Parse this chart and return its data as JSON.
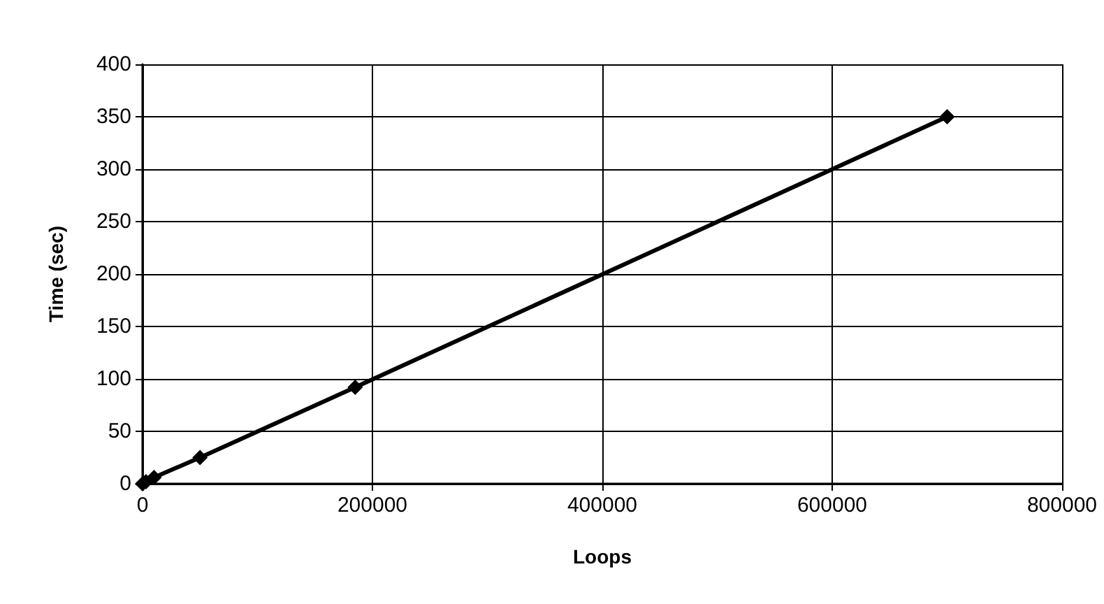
{
  "chart_data": {
    "type": "line",
    "xlabel": "Loops",
    "ylabel": "Time (sec)",
    "x": [
      0,
      3000,
      10000,
      50000,
      185000,
      700000
    ],
    "series": [
      {
        "color": "#000000",
        "values": [
          0,
          2,
          6,
          25,
          92,
          350
        ]
      }
    ],
    "xlim": [
      0,
      800000
    ],
    "xticks": [
      0,
      200000,
      400000,
      600000,
      800000
    ],
    "ylim": [
      0,
      400
    ],
    "yticks": [
      0,
      50,
      100,
      150,
      200,
      250,
      300,
      350,
      400
    ],
    "grid": true,
    "marker": "diamond",
    "line_style": "solid"
  }
}
